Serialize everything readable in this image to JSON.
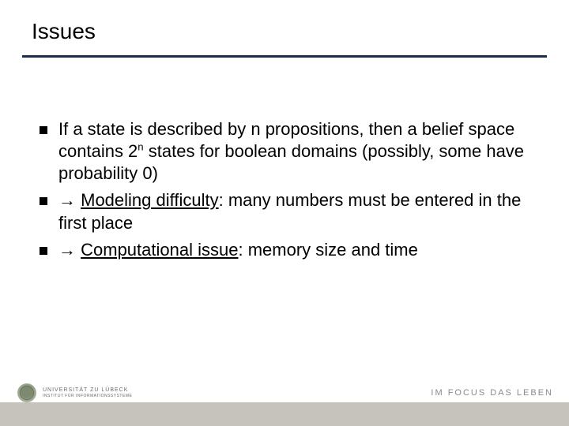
{
  "title": "Issues",
  "bullets": [
    {
      "prefix": "",
      "text_parts": [
        {
          "t": "If a state is described by n propositions, then a belief space contains 2"
        },
        {
          "t": "n",
          "sup": true
        },
        {
          "t": " states for boolean domains (possibly, some have probability 0)"
        }
      ]
    },
    {
      "prefix": "→ ",
      "text_parts": [
        {
          "t": "Modeling difficulty",
          "underline": true
        },
        {
          "t": ": many numbers must be entered in the first place"
        }
      ]
    },
    {
      "prefix": "→ ",
      "text_parts": [
        {
          "t": "Computational issue",
          "underline": true
        },
        {
          "t": ": memory size and time"
        }
      ]
    }
  ],
  "footer": {
    "university_line1": "UNIVERSITÄT ZU LÜBECK",
    "university_line2": "INSTITUT FÜR INFORMATIONSSYSTEME",
    "focus": "IM FOCUS DAS LEBEN"
  },
  "colors": {
    "rule": "#1a2e4a",
    "footer_bar": "#c6c3bd",
    "text": "#000000",
    "footer_text": "#8a8a8a"
  },
  "fonts": {
    "title_family": "Arial",
    "title_size_pt": 28,
    "body_family": "Comic Sans MS",
    "body_size_pt": 22,
    "footer_size_pt": 11
  }
}
